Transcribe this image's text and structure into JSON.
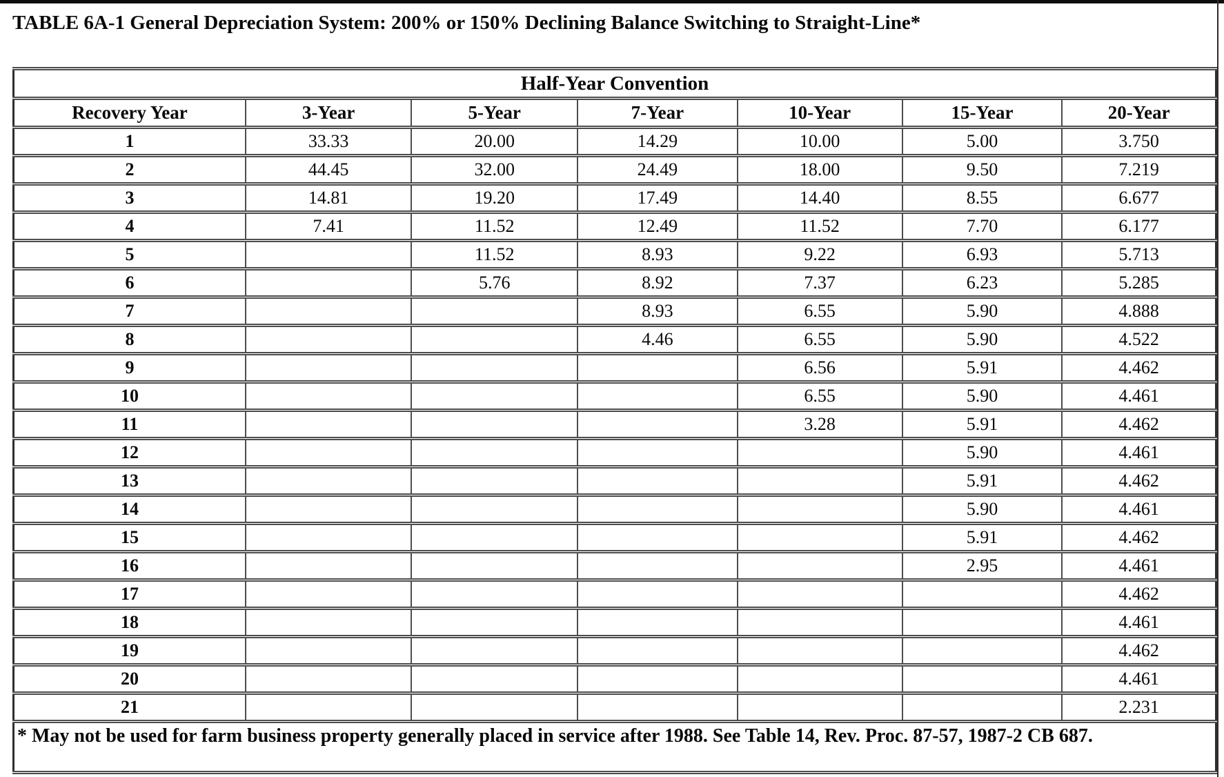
{
  "page": {
    "title": "TABLE 6A-1 General Depreciation System: 200% or 150% Declining Balance Switching to Straight-Line*"
  },
  "table": {
    "caption": "Half-Year Convention",
    "columns": [
      "Recovery Year",
      "3-Year",
      "5-Year",
      "7-Year",
      "10-Year",
      "15-Year",
      "20-Year"
    ],
    "rows": [
      [
        "1",
        "33.33",
        "20.00",
        "14.29",
        "10.00",
        "5.00",
        "3.750"
      ],
      [
        "2",
        "44.45",
        "32.00",
        "24.49",
        "18.00",
        "9.50",
        "7.219"
      ],
      [
        "3",
        "14.81",
        "19.20",
        "17.49",
        "14.40",
        "8.55",
        "6.677"
      ],
      [
        "4",
        "7.41",
        "11.52",
        "12.49",
        "11.52",
        "7.70",
        "6.177"
      ],
      [
        "5",
        "",
        "11.52",
        "8.93",
        "9.22",
        "6.93",
        "5.713"
      ],
      [
        "6",
        "",
        "5.76",
        "8.92",
        "7.37",
        "6.23",
        "5.285"
      ],
      [
        "7",
        "",
        "",
        "8.93",
        "6.55",
        "5.90",
        "4.888"
      ],
      [
        "8",
        "",
        "",
        "4.46",
        "6.55",
        "5.90",
        "4.522"
      ],
      [
        "9",
        "",
        "",
        "",
        "6.56",
        "5.91",
        "4.462"
      ],
      [
        "10",
        "",
        "",
        "",
        "6.55",
        "5.90",
        "4.461"
      ],
      [
        "11",
        "",
        "",
        "",
        "3.28",
        "5.91",
        "4.462"
      ],
      [
        "12",
        "",
        "",
        "",
        "",
        "5.90",
        "4.461"
      ],
      [
        "13",
        "",
        "",
        "",
        "",
        "5.91",
        "4.462"
      ],
      [
        "14",
        "",
        "",
        "",
        "",
        "5.90",
        "4.461"
      ],
      [
        "15",
        "",
        "",
        "",
        "",
        "5.91",
        "4.462"
      ],
      [
        "16",
        "",
        "",
        "",
        "",
        "2.95",
        "4.461"
      ],
      [
        "17",
        "",
        "",
        "",
        "",
        "",
        "4.462"
      ],
      [
        "18",
        "",
        "",
        "",
        "",
        "",
        "4.461"
      ],
      [
        "19",
        "",
        "",
        "",
        "",
        "",
        "4.462"
      ],
      [
        "20",
        "",
        "",
        "",
        "",
        "",
        "4.461"
      ],
      [
        "21",
        "",
        "",
        "",
        "",
        "",
        "2.231"
      ]
    ],
    "footnote": "* May not be used for farm business property generally placed in service after 1988. See Table 14, Rev. Proc. 87-57, 1987-2 CB 687."
  },
  "colors": {
    "page_background": "#ffffff",
    "text": "#0a0a0a",
    "table_border": "#2e2e2e",
    "cell_border": "#4c4c4c",
    "top_bar": "#0d0d0d"
  }
}
